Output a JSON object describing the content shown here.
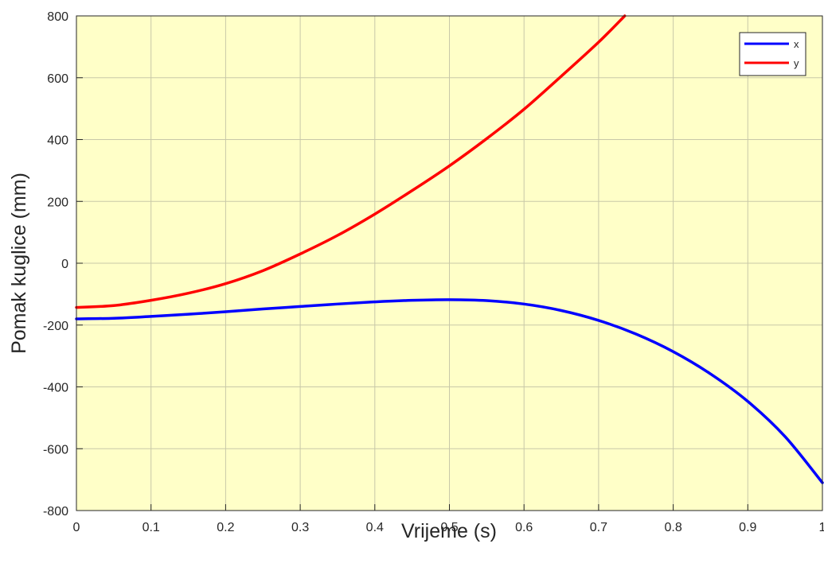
{
  "chart_data": {
    "type": "line",
    "xlabel": "Vrijeme (s)",
    "ylabel": "Pomak kuglice (mm)",
    "xlim": [
      0,
      1
    ],
    "ylim": [
      -800,
      800
    ],
    "xticks": [
      0,
      0.1,
      0.2,
      0.3,
      0.4,
      0.5,
      0.6,
      0.7,
      0.8,
      0.9,
      1
    ],
    "xtick_labels": [
      "0",
      "0.1",
      "0.2",
      "0.3",
      "0.4",
      "0.5",
      "0.6",
      "0.7",
      "0.8",
      "0.9",
      "1"
    ],
    "yticks": [
      -800,
      -600,
      -400,
      -200,
      0,
      200,
      400,
      600,
      800
    ],
    "ytick_labels": [
      "-800",
      "-600",
      "-400",
      "-200",
      "0",
      "200",
      "400",
      "600",
      "800"
    ],
    "grid": true,
    "legend_position": "top-right",
    "background_color": "#ffffc8",
    "series": [
      {
        "name": "x",
        "color": "#0000ff",
        "x": [
          0,
          0.05,
          0.1,
          0.15,
          0.2,
          0.25,
          0.3,
          0.35,
          0.4,
          0.45,
          0.5,
          0.55,
          0.6,
          0.65,
          0.7,
          0.75,
          0.8,
          0.85,
          0.9,
          0.95,
          1.0
        ],
        "y": [
          -180,
          -178,
          -172,
          -165,
          -157,
          -148,
          -140,
          -132,
          -125,
          -120,
          -118,
          -121,
          -132,
          -153,
          -185,
          -229,
          -286,
          -358,
          -447,
          -561,
          -710
        ]
      },
      {
        "name": "y",
        "color": "#ff0000",
        "x": [
          0,
          0.05,
          0.1,
          0.15,
          0.2,
          0.25,
          0.3,
          0.35,
          0.4,
          0.45,
          0.5,
          0.55,
          0.6,
          0.65,
          0.7,
          0.735
        ],
        "y": [
          -143,
          -137,
          -120,
          -97,
          -66,
          -24,
          30,
          90,
          159,
          235,
          315,
          403,
          498,
          605,
          715,
          800
        ]
      }
    ]
  }
}
